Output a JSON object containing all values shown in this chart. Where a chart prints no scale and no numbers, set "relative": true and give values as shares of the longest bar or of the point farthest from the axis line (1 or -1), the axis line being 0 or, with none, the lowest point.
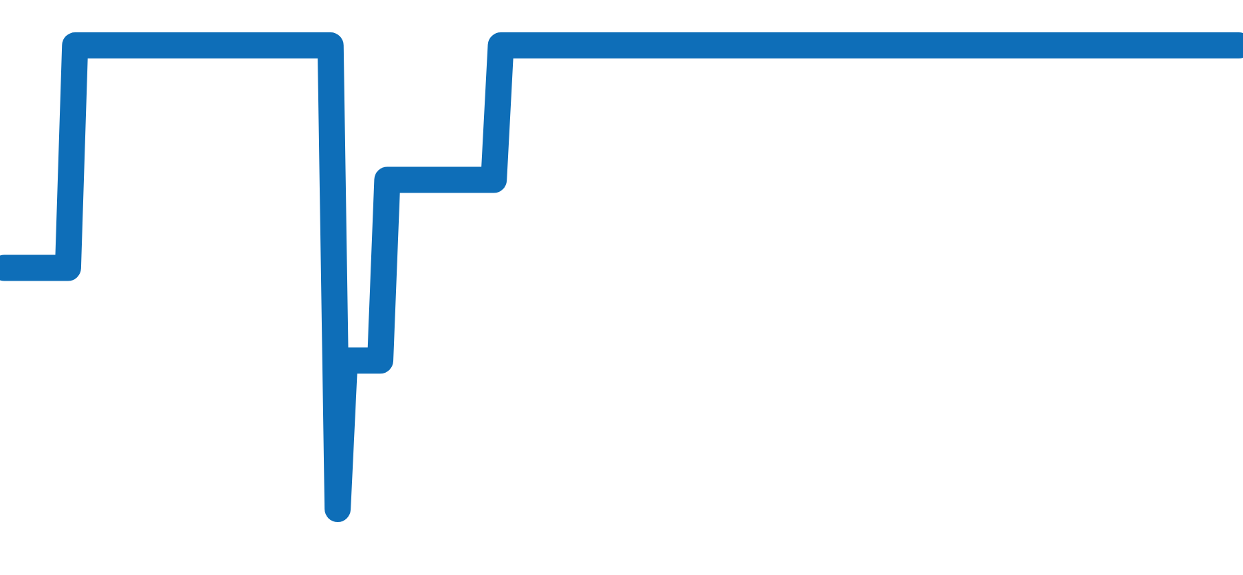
{
  "chart_data": {
    "type": "line",
    "relative": true,
    "color": "#0e6eb8",
    "line_style": "solid",
    "categories": [
      null,
      null,
      null,
      null,
      null,
      null,
      null,
      null,
      null,
      null,
      null,
      null,
      null,
      null,
      null,
      null,
      null,
      null,
      null,
      null,
      null,
      null,
      null,
      null,
      null,
      null,
      null,
      null,
      null,
      null,
      null,
      null,
      null,
      null,
      null,
      null,
      null,
      null,
      null,
      null,
      null,
      null,
      null,
      null,
      null,
      null,
      null,
      null,
      null,
      null,
      null,
      null,
      null,
      null,
      null,
      null,
      null,
      null,
      null,
      null,
      null,
      null,
      null,
      null,
      null,
      null,
      null,
      null,
      null,
      null,
      null,
      null,
      null,
      null,
      null,
      null,
      null,
      null,
      null,
      null,
      null,
      null,
      null,
      null,
      null,
      null,
      null,
      null,
      null,
      null,
      null,
      null,
      null,
      null,
      null,
      null,
      null,
      null,
      null,
      null,
      null,
      null,
      null,
      null,
      null,
      null,
      null,
      null,
      null,
      null,
      null,
      null,
      null,
      null,
      null,
      null,
      null,
      null,
      null,
      null,
      null,
      null,
      null,
      null,
      null,
      null,
      null,
      null,
      null,
      null,
      null,
      null,
      null,
      null,
      null,
      null,
      null,
      null,
      null,
      null,
      null,
      null,
      null,
      null,
      null,
      null,
      null,
      null,
      null,
      null,
      null,
      null,
      null,
      null,
      null,
      null,
      null,
      null,
      null,
      null,
      null,
      null,
      null,
      null,
      null,
      null,
      null,
      null,
      null,
      null,
      null,
      null,
      null,
      null,
      null
    ],
    "values": [
      0.52,
      0.52,
      0.52,
      0.52,
      0.52,
      0.52,
      0.52,
      0.52,
      0.52,
      0.52,
      1,
      1,
      1,
      1,
      1,
      1,
      1,
      1,
      1,
      1,
      1,
      1,
      1,
      1,
      1,
      1,
      1,
      1,
      1,
      1,
      1,
      1,
      1,
      1,
      1,
      1,
      1,
      1,
      1,
      1,
      1,
      1,
      1,
      1,
      1,
      1,
      1,
      0,
      0.32,
      0.32,
      0.32,
      0.32,
      0.32,
      0.32,
      0.71,
      0.71,
      0.71,
      0.71,
      0.71,
      0.71,
      0.71,
      0.71,
      0.71,
      0.71,
      0.71,
      0.71,
      0.71,
      0.71,
      0.71,
      0.71,
      1,
      1,
      1,
      1,
      1,
      1,
      1,
      1,
      1,
      1,
      1,
      1,
      1,
      1,
      1,
      1,
      1,
      1,
      1,
      1,
      1,
      1,
      1,
      1,
      1,
      1,
      1,
      1,
      1,
      1,
      1,
      1,
      1,
      1,
      1,
      1,
      1,
      1,
      1,
      1,
      1,
      1,
      1,
      1,
      1,
      1,
      1,
      1,
      1,
      1,
      1,
      1,
      1,
      1,
      1,
      1,
      1,
      1,
      1,
      1,
      1,
      1,
      1,
      1,
      1,
      1,
      1,
      1,
      1,
      1,
      1,
      1,
      1,
      1,
      1,
      1,
      1,
      1,
      1,
      1,
      1,
      1,
      1,
      1,
      1,
      1,
      1,
      1,
      1,
      1,
      1,
      1,
      1,
      1,
      1,
      1,
      1,
      1,
      1,
      1,
      1,
      1,
      1,
      1,
      1
    ]
  }
}
